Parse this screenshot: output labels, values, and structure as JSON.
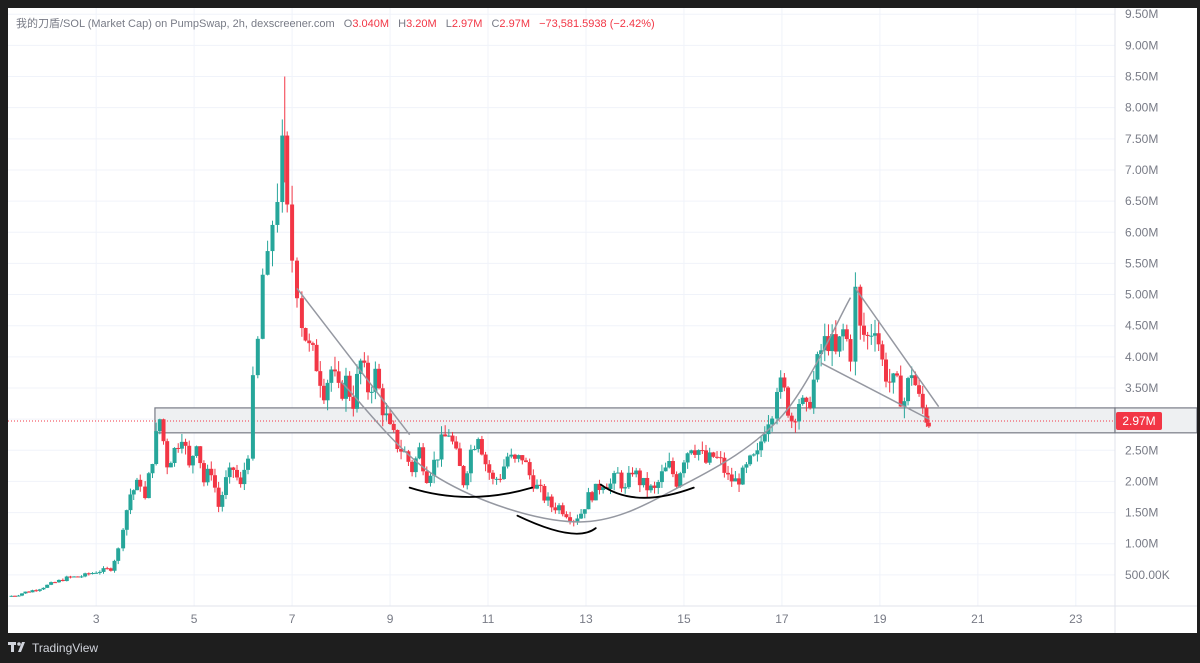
{
  "header": {
    "symbol": "我的刀盾/SOL (Market Cap) on PumpSwap, 2h, dexscreener.com",
    "o_key": "O",
    "o_val": "3.040M",
    "h_key": "H",
    "h_val": "3.20M",
    "l_key": "L",
    "l_val": "2.97M",
    "c_key": "C",
    "c_val": "2.97M",
    "change": "−73,581.5938 (−2.42%)"
  },
  "footer": {
    "brand": "TradingView",
    "logo_icon": "tradingview-logo-icon"
  },
  "colors": {
    "up": "#26a69a",
    "down": "#f23645",
    "grid": "#f0f3fa",
    "axis_text": "#787b86",
    "price_badge": "#f23645",
    "zone_fill": "#eef0f2",
    "zone_border": "#787b86",
    "trendline": "#9598a1",
    "annotation": "#000000"
  },
  "chart_data": {
    "type": "candlestick",
    "title": "我的刀盾/SOL (Market Cap) on PumpSwap, 2h, dexscreener.com",
    "interval": "2h",
    "y_unit": "M",
    "ylim": [
      0,
      9.6
    ],
    "y_ticks": [
      "9.50M",
      "9.00M",
      "8.50M",
      "8.00M",
      "7.50M",
      "7.00M",
      "6.50M",
      "6.00M",
      "5.50M",
      "5.00M",
      "4.50M",
      "4.00M",
      "3.50M",
      "3.00M",
      "2.50M",
      "2.00M",
      "1.50M",
      "1.00M",
      "500.00K"
    ],
    "y_tick_values": [
      9.5,
      9.0,
      8.5,
      8.0,
      7.5,
      7.0,
      6.5,
      6.0,
      5.5,
      5.0,
      4.5,
      4.0,
      3.5,
      3.0,
      2.5,
      2.0,
      1.5,
      1.0,
      0.5
    ],
    "x_ticks": [
      "3",
      "5",
      "7",
      "9",
      "11",
      "13",
      "15",
      "17",
      "19",
      "21",
      "23"
    ],
    "x_tick_values": [
      3,
      5,
      7,
      9,
      11,
      13,
      15,
      17,
      19,
      21,
      23
    ],
    "xlim": [
      1.2,
      23.8
    ],
    "last_price": "2.97M",
    "last_price_value": 2.97,
    "support_zone": {
      "low": 2.78,
      "high": 3.18,
      "from_day": 4.2
    },
    "candle_points": [
      [
        1.2,
        0.15
      ],
      [
        1.7,
        0.25
      ],
      [
        2.0,
        0.33
      ],
      [
        2.4,
        0.45
      ],
      [
        2.7,
        0.48
      ],
      [
        3.0,
        0.55
      ],
      [
        3.3,
        0.6
      ],
      [
        3.45,
        0.9
      ],
      [
        3.55,
        1.3
      ],
      [
        3.7,
        1.8
      ],
      [
        3.9,
        2.0
      ],
      [
        4.0,
        1.7
      ],
      [
        4.15,
        2.4
      ],
      [
        4.3,
        3.0
      ],
      [
        4.45,
        2.3
      ],
      [
        4.6,
        2.5
      ],
      [
        4.75,
        2.8
      ],
      [
        4.9,
        2.2
      ],
      [
        5.05,
        2.7
      ],
      [
        5.2,
        2.0
      ],
      [
        5.35,
        2.2
      ],
      [
        5.5,
        1.6
      ],
      [
        5.65,
        2.0
      ],
      [
        5.8,
        2.2
      ],
      [
        5.95,
        1.9
      ],
      [
        6.1,
        2.5
      ],
      [
        6.2,
        3.5
      ],
      [
        6.3,
        4.2
      ],
      [
        6.4,
        5.3
      ],
      [
        6.5,
        5.4
      ],
      [
        6.6,
        6.2
      ],
      [
        6.7,
        6.7
      ],
      [
        6.8,
        7.2
      ],
      [
        6.9,
        6.2
      ],
      [
        7.0,
        5.6
      ],
      [
        7.1,
        5.2
      ],
      [
        7.2,
        4.6
      ],
      [
        7.35,
        4.1
      ],
      [
        7.5,
        3.9
      ],
      [
        7.65,
        3.5
      ],
      [
        7.8,
        3.8
      ],
      [
        7.95,
        3.4
      ],
      [
        8.1,
        3.6
      ],
      [
        8.25,
        3.3
      ],
      [
        8.4,
        3.9
      ],
      [
        8.55,
        3.5
      ],
      [
        8.7,
        3.7
      ],
      [
        8.85,
        3.2
      ],
      [
        9.0,
        2.8
      ],
      [
        9.15,
        2.6
      ],
      [
        9.3,
        2.45
      ],
      [
        9.45,
        2.2
      ],
      [
        9.6,
        2.5
      ],
      [
        9.75,
        2.1
      ],
      [
        9.9,
        2.3
      ],
      [
        10.05,
        2.6
      ],
      [
        10.2,
        2.8
      ],
      [
        10.35,
        2.4
      ],
      [
        10.5,
        2.0
      ],
      [
        10.65,
        2.5
      ],
      [
        10.8,
        2.8
      ],
      [
        10.95,
        2.3
      ],
      [
        11.1,
        2.0
      ],
      [
        11.25,
        2.1
      ],
      [
        11.4,
        2.4
      ],
      [
        11.55,
        2.3
      ],
      [
        11.7,
        2.4
      ],
      [
        11.85,
        2.1
      ],
      [
        12.0,
        1.9
      ],
      [
        12.15,
        1.75
      ],
      [
        12.3,
        1.6
      ],
      [
        12.45,
        1.6
      ],
      [
        12.6,
        1.5
      ],
      [
        12.75,
        1.4
      ],
      [
        12.9,
        1.5
      ],
      [
        13.05,
        1.75
      ],
      [
        13.2,
        1.85
      ],
      [
        13.35,
        2.0
      ],
      [
        13.5,
        1.95
      ],
      [
        13.65,
        2.1
      ],
      [
        13.8,
        1.85
      ],
      [
        13.95,
        2.2
      ],
      [
        14.1,
        2.0
      ],
      [
        14.25,
        1.9
      ],
      [
        14.4,
        1.85
      ],
      [
        14.55,
        2.1
      ],
      [
        14.7,
        2.25
      ],
      [
        14.85,
        2.0
      ],
      [
        15.0,
        2.4
      ],
      [
        15.15,
        2.6
      ],
      [
        15.3,
        2.5
      ],
      [
        15.45,
        2.3
      ],
      [
        15.6,
        2.4
      ],
      [
        15.75,
        2.3
      ],
      [
        15.9,
        2.05
      ],
      [
        16.05,
        2.0
      ],
      [
        16.2,
        2.1
      ],
      [
        16.35,
        2.3
      ],
      [
        16.5,
        2.4
      ],
      [
        16.65,
        2.9
      ],
      [
        16.8,
        3.2
      ],
      [
        16.9,
        3.6
      ],
      [
        17.05,
        3.4
      ],
      [
        17.2,
        3.0
      ],
      [
        17.35,
        3.3
      ],
      [
        17.5,
        3.1
      ],
      [
        17.65,
        3.6
      ],
      [
        17.8,
        4.1
      ],
      [
        17.95,
        4.3
      ],
      [
        18.1,
        4.0
      ],
      [
        18.25,
        4.4
      ],
      [
        18.4,
        4.1
      ],
      [
        18.5,
        5.0
      ],
      [
        18.6,
        4.4
      ],
      [
        18.75,
        4.3
      ],
      [
        18.9,
        4.6
      ],
      [
        19.05,
        3.9
      ],
      [
        19.2,
        3.6
      ],
      [
        19.35,
        3.5
      ],
      [
        19.5,
        3.3
      ],
      [
        19.65,
        3.8
      ],
      [
        19.8,
        3.3
      ],
      [
        19.95,
        3.04
      ],
      [
        20.0,
        2.97
      ]
    ],
    "trendlines": [
      [
        [
          7.1,
          5.1
        ],
        [
          9.4,
          2.75
        ]
      ],
      [
        [
          18.5,
          5.1
        ],
        [
          20.2,
          3.2
        ]
      ],
      [
        [
          17.8,
          3.9
        ],
        [
          20.0,
          3.0
        ]
      ]
    ],
    "cup_curve": [
      [
        8.0,
        3.6
      ],
      [
        10.0,
        2.05
      ],
      [
        12.8,
        1.35
      ],
      [
        15.0,
        1.95
      ],
      [
        17.0,
        3.05
      ],
      [
        18.4,
        4.95
      ]
    ],
    "annotation_arcs": [
      [
        [
          9.4,
          1.9
        ],
        [
          10.6,
          1.6
        ],
        [
          11.9,
          1.9
        ]
      ],
      [
        [
          11.6,
          1.45
        ],
        [
          12.8,
          1.0
        ],
        [
          13.2,
          1.25
        ]
      ],
      [
        [
          13.3,
          1.95
        ],
        [
          14.0,
          1.55
        ],
        [
          15.2,
          1.9
        ]
      ]
    ]
  }
}
